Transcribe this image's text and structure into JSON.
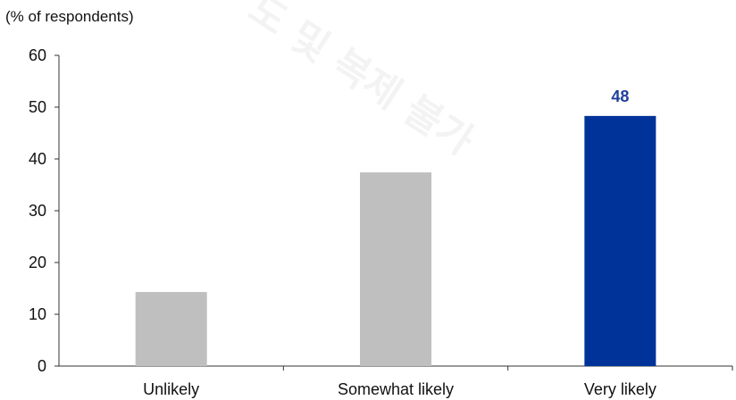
{
  "chart_data": {
    "type": "bar",
    "ylabel": "(% of respondents)",
    "xlabel": "",
    "categories": [
      "Unlikely",
      "Somewhat likely",
      "Very likely"
    ],
    "values": [
      14.3,
      37.4,
      48.3
    ],
    "bar_colors": [
      "#bfbfbf",
      "#bfbfbf",
      "#003399"
    ],
    "data_labels": [
      null,
      null,
      "48"
    ],
    "data_label_color": "#1f3f99",
    "ylim": [
      0,
      60
    ],
    "yticks": [
      0,
      10,
      20,
      30,
      40,
      50,
      60
    ],
    "grid": false,
    "legend": "none"
  },
  "watermark": {
    "text": "도 및 복제 불가"
  }
}
